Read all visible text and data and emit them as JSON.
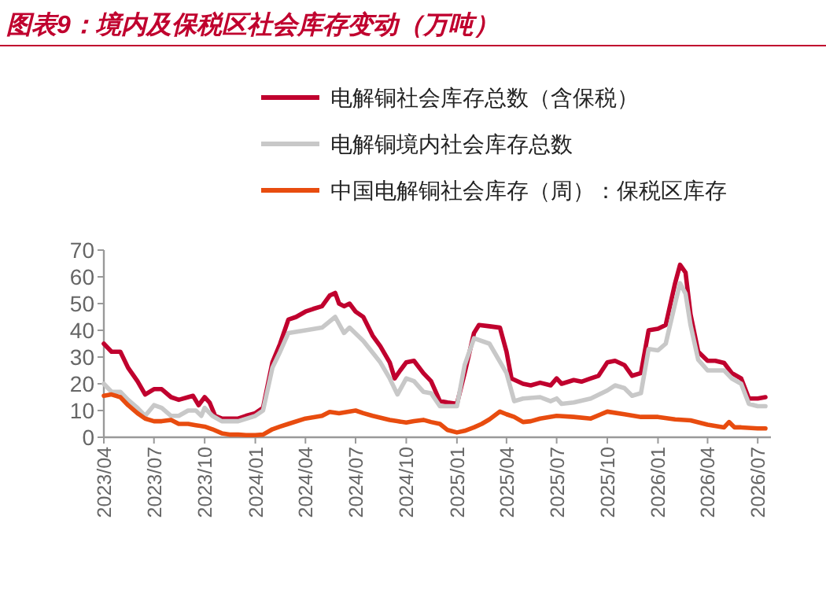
{
  "chart_data": {
    "type": "line",
    "title": "图表9：境内及保税区社会库存变动（万吨）",
    "xlim": [
      "2023-04-01",
      "2026-07-25"
    ],
    "ylim": [
      0,
      70
    ],
    "yticks": [
      0,
      10,
      20,
      30,
      40,
      50,
      60,
      70
    ],
    "xticks": [
      {
        "value": "2023-04",
        "label": "2023/04"
      },
      {
        "value": "2023-07",
        "label": "2023/07"
      },
      {
        "value": "2023-10",
        "label": "2023/10"
      },
      {
        "value": "2024-01",
        "label": "2024/01"
      },
      {
        "value": "2024-04",
        "label": "2024/04"
      },
      {
        "value": "2024-07",
        "label": "2024/07"
      },
      {
        "value": "2024-10",
        "label": "2024/10"
      },
      {
        "value": "2025-01",
        "label": "2025/01"
      },
      {
        "value": "2025-04",
        "label": "2025/04"
      },
      {
        "value": "2025-07",
        "label": "2025/07"
      },
      {
        "value": "2025-10",
        "label": "2025/10"
      },
      {
        "value": "2026-01",
        "label": "2026/01"
      },
      {
        "value": "2026-04",
        "label": "2026/04"
      },
      {
        "value": "2026-07",
        "label": "2026/07"
      }
    ],
    "grid": false,
    "legend": "top",
    "marker": "none",
    "line_style": "solid",
    "series": [
      {
        "name": "电解铜社会库存总数（含保税）",
        "color": "#c0002e",
        "x": [
          "2023-04-01",
          "2023-04-15",
          "2023-05-01",
          "2023-05-15",
          "2023-06-01",
          "2023-06-15",
          "2023-07-01",
          "2023-07-15",
          "2023-08-01",
          "2023-08-15",
          "2023-09-01",
          "2023-09-10",
          "2023-09-20",
          "2023-10-01",
          "2023-10-10",
          "2023-10-20",
          "2023-11-01",
          "2023-11-15",
          "2023-12-01",
          "2023-12-15",
          "2024-01-01",
          "2024-01-15",
          "2024-02-01",
          "2024-02-15",
          "2024-03-01",
          "2024-03-15",
          "2024-04-01",
          "2024-04-15",
          "2024-05-01",
          "2024-05-15",
          "2024-05-25",
          "2024-06-01",
          "2024-06-10",
          "2024-06-20",
          "2024-07-01",
          "2024-07-15",
          "2024-08-01",
          "2024-08-15",
          "2024-09-01",
          "2024-09-10",
          "2024-09-20",
          "2024-10-01",
          "2024-10-15",
          "2024-11-01",
          "2024-11-15",
          "2024-12-01",
          "2024-12-15",
          "2025-01-01",
          "2025-01-15",
          "2025-02-01",
          "2025-02-10",
          "2025-03-01",
          "2025-03-20",
          "2025-04-01",
          "2025-04-10",
          "2025-05-01",
          "2025-05-15",
          "2025-06-01",
          "2025-06-20",
          "2025-07-01",
          "2025-07-10",
          "2025-08-01",
          "2025-08-15",
          "2025-09-01",
          "2025-09-15",
          "2025-10-01",
          "2025-10-15",
          "2025-11-01",
          "2025-11-15",
          "2025-12-01",
          "2025-12-15",
          "2026-01-01",
          "2026-01-15",
          "2026-02-01",
          "2026-02-10",
          "2026-02-20",
          "2026-03-01",
          "2026-03-15",
          "2026-04-01",
          "2026-04-15",
          "2026-05-01",
          "2026-05-15",
          "2026-06-01",
          "2026-06-15",
          "2026-07-01",
          "2026-07-15"
        ],
        "values": [
          35,
          32,
          32,
          26,
          21,
          16,
          18,
          18,
          15,
          14,
          15,
          15.5,
          12,
          15,
          13,
          8,
          7,
          7,
          7,
          8,
          9,
          11,
          28,
          35,
          44,
          45,
          47,
          48,
          49,
          53,
          54,
          50,
          49,
          50,
          47,
          45,
          38,
          34,
          28,
          22,
          25,
          28,
          28.6,
          24,
          21,
          13.5,
          13,
          12.5,
          24,
          39,
          42,
          41.5,
          41,
          32,
          22,
          20,
          19.4,
          20.4,
          19.4,
          22,
          20,
          21.4,
          20.8,
          22,
          23,
          28,
          28.6,
          27,
          23,
          24,
          40,
          40.6,
          42,
          57.6,
          64.5,
          61.6,
          46,
          32,
          28.6,
          28.6,
          27.8,
          24,
          22,
          14.5,
          14.5,
          15
        ]
      },
      {
        "name": "电解铜境内社会库存总数",
        "color": "#c8c8c8",
        "x": [
          "2023-04-01",
          "2023-04-15",
          "2023-05-01",
          "2023-05-15",
          "2023-06-01",
          "2023-06-15",
          "2023-07-01",
          "2023-07-15",
          "2023-08-01",
          "2023-08-15",
          "2023-09-01",
          "2023-09-15",
          "2023-09-25",
          "2023-10-01",
          "2023-10-15",
          "2023-11-01",
          "2023-12-01",
          "2024-01-01",
          "2024-01-15",
          "2024-02-01",
          "2024-02-15",
          "2024-03-01",
          "2024-04-01",
          "2024-05-01",
          "2024-05-25",
          "2024-06-10",
          "2024-06-20",
          "2024-07-15",
          "2024-08-15",
          "2024-09-01",
          "2024-09-15",
          "2024-10-01",
          "2024-10-15",
          "2024-11-01",
          "2024-11-15",
          "2024-12-01",
          "2025-01-01",
          "2025-01-15",
          "2025-02-01",
          "2025-03-01",
          "2025-04-01",
          "2025-04-15",
          "2025-05-01",
          "2025-06-01",
          "2025-06-20",
          "2025-07-01",
          "2025-07-10",
          "2025-08-01",
          "2025-09-01",
          "2025-10-01",
          "2025-10-15",
          "2025-11-01",
          "2025-11-15",
          "2025-12-01",
          "2025-12-15",
          "2026-01-01",
          "2026-01-15",
          "2026-02-01",
          "2026-02-10",
          "2026-02-20",
          "2026-03-01",
          "2026-03-15",
          "2026-04-01",
          "2026-05-01",
          "2026-05-15",
          "2026-06-01",
          "2026-06-15",
          "2026-07-01",
          "2026-07-15"
        ],
        "values": [
          20,
          17,
          17,
          14,
          11,
          8,
          12,
          11,
          8,
          8,
          10,
          10,
          8,
          11,
          8,
          6,
          6,
          8,
          10,
          26,
          32,
          39,
          40,
          41,
          45,
          39,
          41,
          36,
          28,
          22,
          16,
          22,
          21,
          17,
          16.5,
          11.6,
          11.6,
          27,
          37,
          35,
          24,
          13.5,
          14.5,
          15,
          13.5,
          14.5,
          12.5,
          13,
          14.5,
          17.5,
          19.4,
          18.4,
          15.5,
          16.5,
          33,
          32.5,
          35,
          50,
          57.6,
          53.7,
          42,
          29,
          25,
          25,
          22,
          20,
          12.5,
          11.6,
          11.6
        ]
      },
      {
        "name": "中国电解铜社会库存（周）：保税区库存",
        "color": "#e84c0f",
        "x": [
          "2023-04-01",
          "2023-04-15",
          "2023-05-01",
          "2023-05-15",
          "2023-06-01",
          "2023-06-15",
          "2023-07-01",
          "2023-07-15",
          "2023-08-01",
          "2023-08-15",
          "2023-09-01",
          "2023-09-15",
          "2023-10-01",
          "2023-10-15",
          "2023-11-01",
          "2023-11-15",
          "2023-12-01",
          "2023-12-15",
          "2024-01-01",
          "2024-01-15",
          "2024-02-01",
          "2024-02-15",
          "2024-03-01",
          "2024-04-01",
          "2024-05-01",
          "2024-05-15",
          "2024-06-01",
          "2024-07-01",
          "2024-07-15",
          "2024-08-01",
          "2024-09-01",
          "2024-09-15",
          "2024-10-01",
          "2024-10-15",
          "2024-11-01",
          "2024-11-15",
          "2024-12-01",
          "2024-12-15",
          "2025-01-01",
          "2025-01-15",
          "2025-02-01",
          "2025-02-15",
          "2025-03-01",
          "2025-03-20",
          "2025-04-01",
          "2025-04-15",
          "2025-05-01",
          "2025-05-15",
          "2025-06-01",
          "2025-07-01",
          "2025-08-01",
          "2025-09-01",
          "2025-10-01",
          "2025-11-01",
          "2025-12-01",
          "2026-01-01",
          "2026-02-01",
          "2026-03-01",
          "2026-04-01",
          "2026-05-01",
          "2026-05-10",
          "2026-05-20",
          "2026-06-01",
          "2026-07-01",
          "2026-07-15"
        ],
        "values": [
          15.5,
          16,
          15,
          12,
          9,
          7,
          6,
          6,
          6.5,
          5,
          5,
          4.5,
          4,
          3,
          1.5,
          1,
          1,
          0.8,
          0.8,
          1,
          3,
          4,
          5,
          7,
          8,
          9.5,
          9,
          10,
          9,
          8,
          6.5,
          6,
          5.5,
          6,
          6.5,
          5.7,
          5,
          2.7,
          1.8,
          2.4,
          3.7,
          5,
          6.7,
          9.6,
          8.6,
          7.6,
          5.7,
          6,
          7,
          8,
          7.6,
          7,
          9.6,
          8.6,
          7.6,
          7.6,
          6.7,
          6.3,
          4.7,
          3.7,
          5.7,
          3.7,
          3.7,
          3.3,
          3.3
        ]
      }
    ]
  }
}
